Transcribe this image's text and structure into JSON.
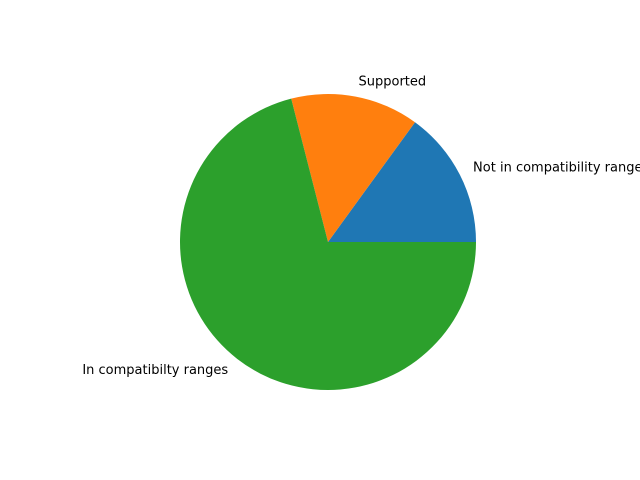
{
  "chart_data": {
    "type": "pie",
    "title": "",
    "slices": [
      {
        "label": "Not in compatibility ranges",
        "value": 15,
        "color": "#1f77b4"
      },
      {
        "label": "Supported",
        "value": 14,
        "color": "#ff7f0e"
      },
      {
        "label": "In compatibilty ranges",
        "value": 71,
        "color": "#2ca02c"
      }
    ],
    "start_angle_deg": 0,
    "direction": "counterclockwise",
    "legend": "none"
  }
}
